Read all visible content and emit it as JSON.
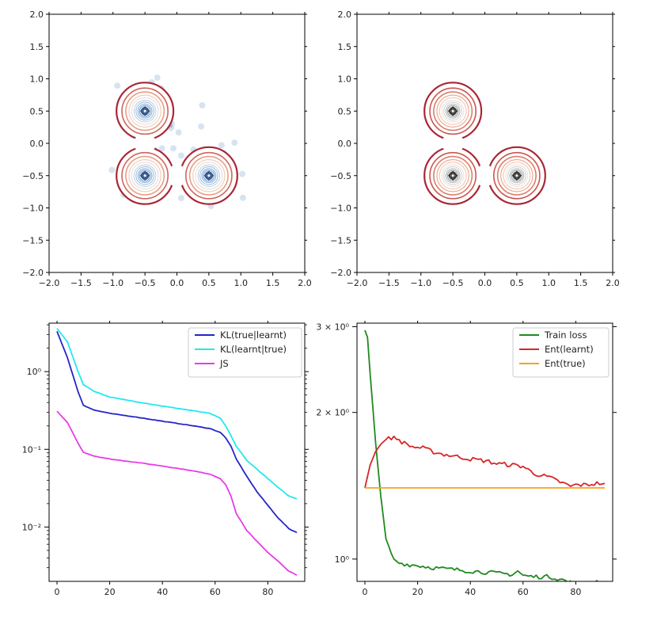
{
  "chart_data": [
    {
      "type": "contour",
      "title": "",
      "xlim": [
        -2.0,
        2.0
      ],
      "ylim": [
        -2.0,
        2.0
      ],
      "xticks": [
        "−2.0",
        "−1.5",
        "−1.0",
        "−0.5",
        "0.0",
        "0.5",
        "1.0",
        "1.5",
        "2.0"
      ],
      "yticks": [
        "−2.0",
        "−1.5",
        "−1.0",
        "−0.5",
        "0.0",
        "0.5",
        "1.0",
        "1.5",
        "2.0"
      ],
      "mixture_centers": [
        [
          -0.5,
          0.5
        ],
        [
          -0.5,
          -0.5
        ],
        [
          0.5,
          -0.5
        ]
      ],
      "overlay": "scatter of samples (blue, translucent)",
      "colormap": "RdBu"
    },
    {
      "type": "contour",
      "title": "",
      "xlim": [
        -2.0,
        2.0
      ],
      "ylim": [
        -2.0,
        2.0
      ],
      "xticks": [
        "−2.0",
        "−1.5",
        "−1.0",
        "−0.5",
        "0.0",
        "0.5",
        "1.0",
        "1.5",
        "2.0"
      ],
      "yticks": [
        "−2.0",
        "−1.5",
        "−1.0",
        "−0.5",
        "0.0",
        "0.5",
        "1.0",
        "1.5",
        "2.0"
      ],
      "mixture_centers": [
        [
          -0.5,
          0.5
        ],
        [
          -0.5,
          -0.5
        ],
        [
          0.5,
          -0.5
        ]
      ],
      "colormap": "RdGy"
    },
    {
      "type": "line",
      "yscale": "log",
      "xlim": [
        -3,
        94
      ],
      "ylim": [
        0.002,
        4.2
      ],
      "xticks": [
        "0",
        "20",
        "40",
        "60",
        "80"
      ],
      "yticks": [
        "10⁰",
        "10⁻¹",
        "10⁻²"
      ],
      "legend_position": "upper-right",
      "series": [
        {
          "name": "KL(true|learnt)",
          "color": "#2525c8",
          "x": [
            0,
            4,
            8,
            10,
            14,
            20,
            30,
            40,
            50,
            58,
            62,
            64,
            66,
            68,
            72,
            76,
            80,
            84,
            88,
            91
          ],
          "values": [
            3.3,
            1.5,
            0.55,
            0.37,
            0.32,
            0.29,
            0.26,
            0.23,
            0.205,
            0.185,
            0.165,
            0.14,
            0.11,
            0.075,
            0.045,
            0.028,
            0.019,
            0.013,
            0.0095,
            0.0085
          ]
        },
        {
          "name": "KL(learnt|true)",
          "color": "#22e8ee",
          "x": [
            0,
            4,
            8,
            10,
            14,
            20,
            30,
            40,
            50,
            58,
            62,
            64,
            66,
            68,
            72,
            76,
            80,
            84,
            88,
            91
          ],
          "values": [
            3.6,
            2.4,
            1.0,
            0.68,
            0.56,
            0.47,
            0.41,
            0.36,
            0.32,
            0.29,
            0.25,
            0.2,
            0.15,
            0.11,
            0.072,
            0.055,
            0.042,
            0.032,
            0.025,
            0.023
          ]
        },
        {
          "name": "JS",
          "color": "#e83be8",
          "x": [
            0,
            4,
            8,
            10,
            14,
            20,
            30,
            40,
            50,
            58,
            62,
            64,
            66,
            68,
            72,
            76,
            80,
            84,
            88,
            91
          ],
          "values": [
            0.31,
            0.22,
            0.12,
            0.092,
            0.082,
            0.075,
            0.068,
            0.061,
            0.054,
            0.048,
            0.042,
            0.035,
            0.025,
            0.015,
            0.009,
            0.0065,
            0.0047,
            0.0036,
            0.0027,
            0.0024
          ]
        }
      ]
    },
    {
      "type": "line",
      "yscale": "log",
      "xlim": [
        -3,
        94
      ],
      "ylim": [
        0.9,
        3.05
      ],
      "xticks": [
        "0",
        "20",
        "40",
        "60",
        "80"
      ],
      "yticks": [
        "3 × 10⁰",
        "2 × 10⁰",
        "10⁰"
      ],
      "legend_position": "upper-right",
      "series": [
        {
          "name": "Train loss",
          "color": "#1f8a1f",
          "x": [
            0,
            1,
            2,
            4,
            6,
            8,
            10,
            12,
            16,
            20,
            26,
            30,
            36,
            40,
            46,
            50,
            56,
            58,
            60,
            64,
            70,
            74,
            78,
            80,
            84,
            88,
            91
          ],
          "values": [
            2.95,
            2.85,
            2.4,
            1.75,
            1.35,
            1.1,
            1.02,
            0.985,
            0.975,
            0.97,
            0.96,
            0.955,
            0.95,
            0.945,
            0.94,
            0.935,
            0.93,
            0.945,
            0.925,
            0.92,
            0.92,
            0.91,
            0.895,
            0.89,
            0.895,
            0.9,
            0.895
          ]
        },
        {
          "name": "Ent(learnt)",
          "color": "#d62728",
          "x": [
            0,
            2,
            4,
            6,
            8,
            10,
            12,
            14,
            18,
            22,
            26,
            30,
            36,
            40,
            46,
            50,
            56,
            60,
            64,
            70,
            74,
            78,
            80,
            84,
            88,
            91
          ],
          "values": [
            1.4,
            1.56,
            1.66,
            1.72,
            1.76,
            1.775,
            1.77,
            1.74,
            1.7,
            1.69,
            1.66,
            1.64,
            1.62,
            1.605,
            1.59,
            1.57,
            1.56,
            1.55,
            1.5,
            1.47,
            1.44,
            1.41,
            1.42,
            1.42,
            1.43,
            1.43
          ]
        },
        {
          "name": "Ent(true)",
          "color": "#f5a31b",
          "x": [
            0,
            91
          ],
          "values": [
            1.4,
            1.4
          ]
        }
      ]
    }
  ]
}
